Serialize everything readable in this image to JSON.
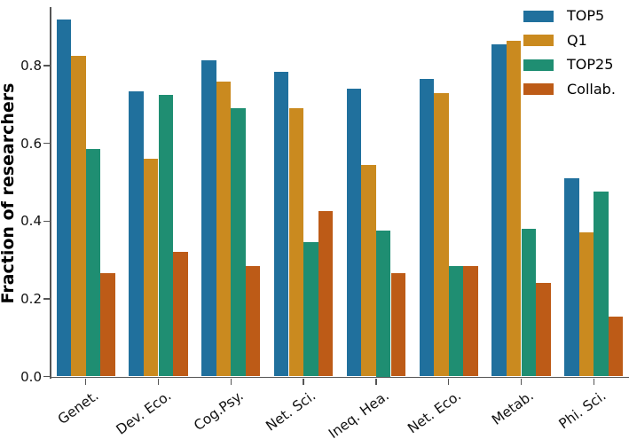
{
  "chart_data": {
    "type": "bar",
    "title": "",
    "ylabel": "Fraction of researchers",
    "xlabel": "",
    "categories": [
      "Genet.",
      "Dev. Eco.",
      "Cog.Psy.",
      "Net. Sci.",
      "Ineq. Hea.",
      "Net. Eco.",
      "Metab.",
      "Phi. Sci."
    ],
    "series": [
      {
        "name": "TOP5",
        "color": "#20709d",
        "values": [
          0.92,
          0.735,
          0.815,
          0.785,
          0.74,
          0.765,
          0.855,
          0.51
        ]
      },
      {
        "name": "Q1",
        "color": "#ca8a1f",
        "values": [
          0.825,
          0.56,
          0.76,
          0.69,
          0.545,
          0.73,
          0.865,
          0.37
        ]
      },
      {
        "name": "TOP25",
        "color": "#1f8e72",
        "values": [
          0.585,
          0.725,
          0.69,
          0.345,
          0.375,
          0.285,
          0.38,
          0.475
        ]
      },
      {
        "name": "Collab.",
        "color": "#bd5b17",
        "values": [
          0.265,
          0.32,
          0.285,
          0.425,
          0.265,
          0.285,
          0.24,
          0.155
        ]
      }
    ],
    "ylim": [
      0.0,
      0.95
    ],
    "yticks": [
      0.0,
      0.2,
      0.4,
      0.6,
      0.8
    ],
    "ytick_labels": [
      "0.0",
      "0.2",
      "0.4",
      "0.6",
      "0.8"
    ],
    "grid": false,
    "legend_position": "upper right"
  }
}
